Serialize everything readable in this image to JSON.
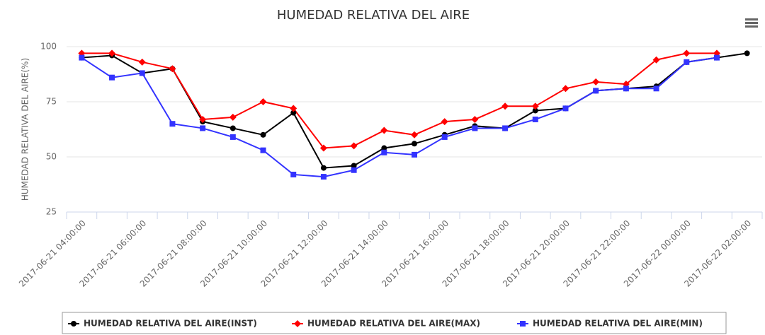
{
  "chart_data": {
    "type": "line",
    "title": "HUMEDAD RELATIVA DEL AIRE",
    "y_label": "HUMEDAD RELATIVA DEL AIRE(%)",
    "categories": [
      "2017-06-21 04:00:00",
      null,
      "2017-06-21 06:00:00",
      null,
      "2017-06-21 08:00:00",
      null,
      "2017-06-21 10:00:00",
      null,
      "2017-06-21 12:00:00",
      null,
      "2017-06-21 14:00:00",
      null,
      "2017-06-21 16:00:00",
      null,
      "2017-06-21 18:00:00",
      null,
      "2017-06-21 20:00:00",
      null,
      "2017-06-21 22:00:00",
      null,
      "2017-06-22 00:00:00",
      null,
      "2017-06-22 02:00:00"
    ],
    "series": [
      {
        "name": "HUMEDAD RELATIVA DEL AIRE(INST)",
        "color": "#000000",
        "marker": "circle",
        "values": [
          95,
          96,
          88,
          90,
          66,
          63,
          60,
          70,
          45,
          46,
          54,
          56,
          60,
          64,
          63,
          71,
          72,
          80,
          81,
          82,
          93,
          95,
          97
        ]
      },
      {
        "name": "HUMEDAD RELATIVA DEL AIRE(MAX)",
        "color": "#ff0000",
        "marker": "diamond",
        "values": [
          97,
          97,
          93,
          90,
          67,
          68,
          75,
          72,
          54,
          55,
          62,
          60,
          66,
          67,
          73,
          73,
          81,
          84,
          83,
          94,
          97,
          97,
          null
        ]
      },
      {
        "name": "HUMEDAD RELATIVA DEL AIRE(MIN)",
        "color": "#3333ff",
        "marker": "square",
        "values": [
          95,
          86,
          88,
          65,
          63,
          59,
          53,
          42,
          41,
          44,
          52,
          51,
          59,
          63,
          63,
          67,
          72,
          80,
          81,
          81,
          93,
          95,
          null
        ]
      }
    ],
    "ylim": [
      25,
      100
    ],
    "yticks": [
      25,
      50,
      75,
      100
    ],
    "grid": true
  }
}
